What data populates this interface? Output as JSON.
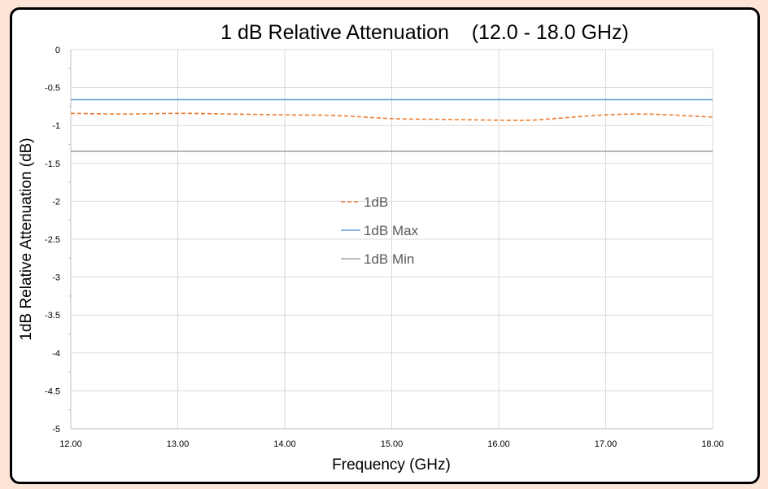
{
  "chart_data": {
    "type": "line",
    "title": "1 dB Relative Attenuation    (12.0 - 18.0 GHz)",
    "xlabel": "Frequency (GHz)",
    "ylabel": "1dB Relative Attenuation (dB)",
    "xlim": [
      12,
      18
    ],
    "ylim": [
      -5,
      0
    ],
    "x_ticks": [
      "12.00",
      "13.00",
      "14.00",
      "15.00",
      "16.00",
      "17.00",
      "18.00"
    ],
    "y_ticks": [
      "0",
      "-0.5",
      "-1",
      "-1.5",
      "-2",
      "-2.5",
      "-3",
      "-3.5",
      "-4",
      "-4.5",
      "-5"
    ],
    "grid": true,
    "legend_position": "center",
    "series": [
      {
        "name": "1dB",
        "color": "#ed7d31",
        "dash": "dashed",
        "x": [
          12.0,
          12.5,
          13.0,
          13.5,
          14.0,
          14.5,
          15.0,
          15.5,
          16.0,
          16.3,
          16.6,
          17.0,
          17.3,
          17.6,
          18.0
        ],
        "y": [
          -0.84,
          -0.85,
          -0.84,
          -0.85,
          -0.86,
          -0.87,
          -0.91,
          -0.92,
          -0.93,
          -0.93,
          -0.9,
          -0.86,
          -0.85,
          -0.86,
          -0.89
        ]
      },
      {
        "name": "1dB Max",
        "color": "#5b9bd5",
        "dash": "solid",
        "x": [
          12.0,
          18.0
        ],
        "y": [
          -0.66,
          -0.66
        ]
      },
      {
        "name": "1dB Min",
        "color": "#a5a5a5",
        "dash": "solid",
        "x": [
          12.0,
          18.0
        ],
        "y": [
          -1.34,
          -1.34
        ]
      }
    ]
  }
}
